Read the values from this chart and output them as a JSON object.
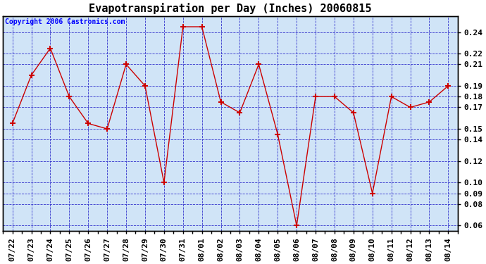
{
  "title": "Evapotranspiration per Day (Inches) 20060815",
  "copyright_text": "Copyright 2006 Castronics.com",
  "x_labels": [
    "07/22",
    "07/23",
    "07/24",
    "07/25",
    "07/26",
    "07/27",
    "07/28",
    "07/29",
    "07/30",
    "07/31",
    "08/01",
    "08/02",
    "08/03",
    "08/04",
    "08/05",
    "08/06",
    "08/07",
    "08/08",
    "08/09",
    "08/10",
    "08/11",
    "08/12",
    "08/13",
    "08/14"
  ],
  "y_values": [
    0.155,
    0.2,
    0.225,
    0.18,
    0.155,
    0.15,
    0.21,
    0.19,
    0.1,
    0.245,
    0.245,
    0.175,
    0.165,
    0.21,
    0.145,
    0.06,
    0.18,
    0.18,
    0.165,
    0.09,
    0.18,
    0.17,
    0.175,
    0.19
  ],
  "line_color": "#cc0000",
  "marker": "+",
  "marker_color": "#cc0000",
  "fig_bg_color": "#ffffff",
  "plot_bg_color": "#d0e4f7",
  "grid_color": "#3333cc",
  "ylim": [
    0.055,
    0.255
  ],
  "yticks": [
    0.06,
    0.08,
    0.09,
    0.1,
    0.12,
    0.14,
    0.15,
    0.17,
    0.18,
    0.19,
    0.21,
    0.22,
    0.24
  ],
  "title_fontsize": 11,
  "tick_fontsize": 8,
  "copyright_fontsize": 7
}
